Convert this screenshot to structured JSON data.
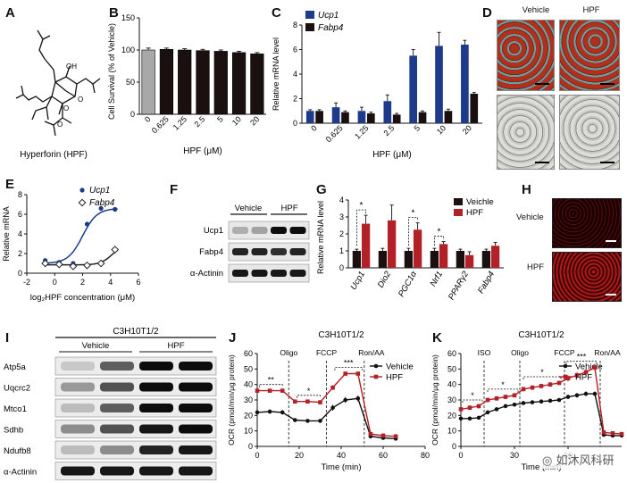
{
  "panels": {
    "A": {
      "letter": "A",
      "caption": "Hyperforin (HPF)",
      "atom_labels": [
        "OH",
        "O",
        "O",
        "O"
      ]
    },
    "B": {
      "letter": "B"
    },
    "C": {
      "letter": "C"
    },
    "D": {
      "letter": "D",
      "col_labels": [
        "Vehicle",
        "HPF"
      ]
    },
    "E": {
      "letter": "E"
    },
    "F": {
      "letter": "F"
    },
    "G": {
      "letter": "G"
    },
    "H": {
      "letter": "H",
      "row_labels": [
        "Vehicle",
        "HPF"
      ]
    },
    "I": {
      "letter": "I"
    },
    "J": {
      "letter": "J"
    },
    "K": {
      "letter": "K"
    }
  },
  "watermark": {
    "text": "如沐风科研"
  },
  "colors": {
    "black": "#1a1010",
    "navy": "#1d3b8a",
    "red": "#b22028",
    "gray": "#a8a8a8",
    "oil_red": "#b03020",
    "teal": "#5ba9a7"
  },
  "chart_data": [
    {
      "id": "B",
      "type": "bar",
      "title": "",
      "categories": [
        "0",
        "0.625",
        "1.25",
        "2.5",
        "5",
        "10",
        "20"
      ],
      "values": [
        100,
        101,
        100,
        99,
        98,
        96,
        94
      ],
      "errors": [
        3,
        2,
        2,
        2,
        2,
        2,
        2
      ],
      "xlabel": "HPF (μM)",
      "ylabel": "Cell Survival (% of Vehicle)",
      "ylim": [
        0,
        150
      ],
      "yticks": [
        "0",
        "50",
        "100",
        "150"
      ]
    },
    {
      "id": "C",
      "type": "bar",
      "categories": [
        "0",
        "0.625",
        "1.25",
        "2.5",
        "5",
        "10",
        "20"
      ],
      "series": [
        {
          "name": "Ucp1",
          "values": [
            1.0,
            1.3,
            1.0,
            1.8,
            5.5,
            6.3,
            6.4
          ],
          "errors": [
            0.1,
            0.35,
            0.3,
            0.5,
            0.5,
            1.1,
            0.35
          ]
        },
        {
          "name": "Fabp4",
          "values": [
            1.0,
            0.9,
            0.8,
            0.7,
            0.9,
            1.0,
            2.4
          ],
          "errors": [
            0.1,
            0.1,
            0.1,
            0.1,
            0.1,
            0.15,
            0.1
          ]
        }
      ],
      "xlabel": "HPF (μM)",
      "ylabel": "Relative mRNA level",
      "ylim": [
        0,
        8
      ],
      "yticks": [
        "0",
        "2",
        "4",
        "6",
        "8"
      ]
    },
    {
      "id": "E",
      "type": "line",
      "series": [
        {
          "name": "Ucp1",
          "x": [
            -0.68,
            0.32,
            1.32,
            2.32,
            3.32,
            4.32
          ],
          "y": [
            1.3,
            1.1,
            1.0,
            5.0,
            6.6,
            6.5
          ]
        },
        {
          "name": "Fabp4",
          "x": [
            -0.68,
            0.32,
            1.32,
            2.32,
            3.32,
            4.32
          ],
          "y": [
            1.0,
            0.9,
            0.7,
            0.8,
            1.0,
            2.4
          ]
        }
      ],
      "xlabel": "log₂HPF concentration (μM)",
      "ylabel": "Relative mRNA",
      "xlim": [
        -2,
        6
      ],
      "ylim": [
        0,
        8
      ],
      "xticks": [
        "-2",
        "0",
        "2",
        "4",
        "6"
      ],
      "yticks": [
        "0",
        "2",
        "4",
        "6",
        "8"
      ]
    },
    {
      "id": "F",
      "type": "table",
      "kind": "western-blot",
      "groups": [
        "Vehicle",
        "HPF"
      ],
      "rows": [
        "Ucp1",
        "Fabp4",
        "α-Actinin"
      ]
    },
    {
      "id": "G",
      "type": "bar",
      "categories": [
        "Ucp1",
        "Dio2",
        "PGC1α",
        "Nrf1",
        "PPARγ2",
        "Fabp4"
      ],
      "series": [
        {
          "name": "Veichle",
          "values": [
            1.0,
            1.0,
            1.0,
            1.0,
            1.0,
            1.0
          ],
          "errors": [
            0.1,
            0.15,
            0.15,
            0.15,
            0.1,
            0.1
          ]
        },
        {
          "name": "HPF",
          "values": [
            2.6,
            2.8,
            2.25,
            1.4,
            0.75,
            1.3
          ],
          "errors": [
            0.5,
            0.9,
            0.4,
            0.15,
            0.2,
            0.2
          ]
        }
      ],
      "significance": [
        "*",
        "",
        "*",
        "*",
        "",
        ""
      ],
      "ylabel": "Relative mRNA level",
      "ylim": [
        0,
        4
      ],
      "yticks": [
        "0",
        "1",
        "2",
        "3",
        "4"
      ]
    },
    {
      "id": "I",
      "type": "table",
      "kind": "western-blot",
      "header": "C3H10T1/2",
      "groups": [
        "Vehicle",
        "HPF"
      ],
      "rows": [
        "Atp5a",
        "Uqcrc2",
        "Mtco1",
        "Sdhb",
        "Ndufb8",
        "α-Actinin"
      ]
    },
    {
      "id": "J",
      "type": "line",
      "title": "C3H10T1/2",
      "series": [
        {
          "name": "Vehicle",
          "x": [
            0,
            6,
            12,
            18,
            24,
            30,
            36,
            42,
            48,
            54,
            60,
            66
          ],
          "y": [
            22,
            22.5,
            22,
            17,
            16.5,
            16.5,
            25,
            30,
            31,
            6.5,
            5.5,
            5
          ],
          "errors": [
            1.5,
            1.5,
            1.5,
            1.2,
            1.2,
            1.2,
            2,
            2,
            2,
            0.8,
            0.8,
            0.8
          ]
        },
        {
          "name": "HPF",
          "x": [
            0,
            6,
            12,
            18,
            24,
            30,
            36,
            42,
            48,
            54,
            60,
            66
          ],
          "y": [
            36,
            36,
            36,
            29,
            29,
            28.5,
            38,
            47,
            47,
            8,
            7,
            6.5
          ],
          "errors": [
            1.2,
            1.2,
            1.2,
            1,
            1,
            1,
            1.5,
            1.2,
            1.2,
            0.8,
            0.8,
            0.8
          ]
        }
      ],
      "injections": [
        {
          "label": "Oligo",
          "x": 15
        },
        {
          "label": "FCCP",
          "x": 33
        },
        {
          "label": "Ron/AA",
          "x": 51
        }
      ],
      "significance": [
        {
          "text": "**",
          "x1": 1,
          "x2": 12
        },
        {
          "text": "*",
          "x1": 19,
          "x2": 30
        },
        {
          "text": "***",
          "x1": 37,
          "x2": 50
        }
      ],
      "xlabel": "Time (min)",
      "ylabel": "OCR (pmol/min/μg protein)",
      "xlim": [
        0,
        80
      ],
      "ylim": [
        0,
        60
      ],
      "xticks": [
        "0",
        "20",
        "40",
        "60",
        "80"
      ],
      "yticks": [
        "0",
        "10",
        "20",
        "30",
        "40",
        "50",
        "60"
      ]
    },
    {
      "id": "K",
      "type": "line",
      "title": "C3H10T1/2",
      "series": [
        {
          "name": "Vehicle",
          "x": [
            0,
            5,
            10,
            15,
            20,
            25,
            30,
            35,
            40,
            45,
            50,
            55,
            60,
            65,
            70,
            75,
            80,
            85,
            90
          ],
          "y": [
            18,
            18,
            18.5,
            22,
            24,
            26,
            27,
            28,
            28.5,
            29,
            29.5,
            30,
            32,
            33,
            34,
            34,
            7.5,
            7,
            7
          ],
          "errors": [
            1.2,
            1.2,
            1.2,
            1.2,
            1.2,
            1.2,
            1.2,
            1.2,
            1.2,
            1.2,
            1.2,
            1.2,
            1.5,
            1.5,
            1.5,
            1.5,
            0.8,
            0.8,
            0.8
          ]
        },
        {
          "name": "HPF",
          "x": [
            0,
            5,
            10,
            15,
            20,
            25,
            30,
            35,
            40,
            45,
            50,
            55,
            60,
            65,
            70,
            75,
            80,
            85,
            90
          ],
          "y": [
            24,
            25,
            26,
            30,
            31,
            32,
            33,
            37,
            38,
            39,
            40,
            41,
            44,
            46,
            48,
            51,
            9,
            8.5,
            8
          ],
          "errors": [
            1.5,
            1.5,
            1.5,
            1.5,
            1.5,
            1.5,
            1.5,
            1.5,
            1.5,
            1.5,
            1.5,
            1.5,
            2,
            2,
            2,
            2.5,
            0.8,
            0.8,
            0.8
          ]
        }
      ],
      "injections": [
        {
          "label": "ISO",
          "x": 13
        },
        {
          "label": "Oligo",
          "x": 33
        },
        {
          "label": "FCCP",
          "x": 58
        },
        {
          "label": "Ron/AA",
          "x": 78
        }
      ],
      "significance": [
        {
          "text": "*",
          "x1": 1,
          "x2": 12
        },
        {
          "text": "*",
          "x1": 15,
          "x2": 32
        },
        {
          "text": "*",
          "x1": 35,
          "x2": 56
        },
        {
          "text": "***",
          "x1": 59,
          "x2": 76
        }
      ],
      "xlabel": "Time (min)",
      "ylabel": "OCR (pmol/min/μg protein)",
      "xlim": [
        0,
        90
      ],
      "ylim": [
        0,
        60
      ],
      "xticks": [
        "0",
        "30",
        "60"
      ],
      "yticks": [
        "0",
        "10",
        "20",
        "30",
        "40",
        "50",
        "60"
      ]
    }
  ]
}
